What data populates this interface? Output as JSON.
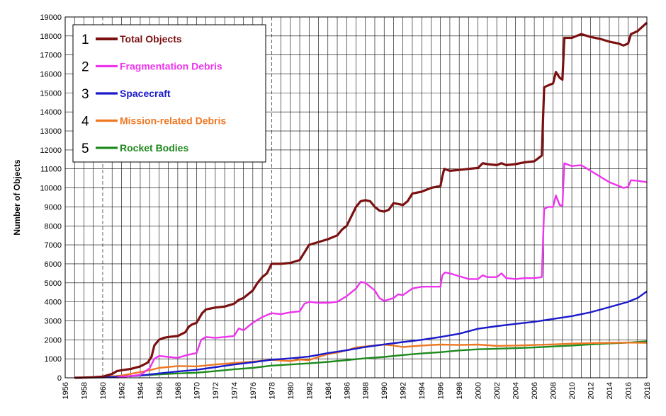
{
  "chart_data": {
    "type": "line",
    "title": "",
    "xlabel": "",
    "ylabel": "Number of Objects",
    "xlim": [
      1956,
      2018
    ],
    "ylim": [
      0,
      19000
    ],
    "x_ticks": [
      "1956",
      "1958",
      "1960",
      "1962",
      "1964",
      "1966",
      "1968",
      "1970",
      "1972",
      "1974",
      "1976",
      "1978",
      "1980",
      "1982",
      "1984",
      "1986",
      "1988",
      "1990",
      "1992",
      "1994",
      "1996",
      "1998",
      "2000",
      "2002",
      "2004",
      "2006",
      "2008",
      "2010",
      "2012",
      "2014",
      "2016",
      "2018"
    ],
    "y_ticks": [
      "0",
      "1000",
      "2000",
      "3000",
      "4000",
      "5000",
      "6000",
      "7000",
      "8000",
      "9000",
      "10000",
      "11000",
      "12000",
      "13000",
      "14000",
      "15000",
      "16000",
      "17000",
      "18000",
      "19000"
    ],
    "grid": true,
    "legend_position": "top-left",
    "series": [
      {
        "number": "1",
        "name": "Total Objects",
        "color": "#7b1010",
        "points": [
          [
            1957,
            0
          ],
          [
            1958,
            10
          ],
          [
            1959,
            30
          ],
          [
            1960,
            60
          ],
          [
            1961,
            200
          ],
          [
            1961.5,
            350
          ],
          [
            1962,
            400
          ],
          [
            1963,
            470
          ],
          [
            1964,
            600
          ],
          [
            1964.8,
            800
          ],
          [
            1965.2,
            1100
          ],
          [
            1965.5,
            1700
          ],
          [
            1966,
            2000
          ],
          [
            1966.5,
            2100
          ],
          [
            1967,
            2150
          ],
          [
            1968,
            2200
          ],
          [
            1968.8,
            2400
          ],
          [
            1969.2,
            2700
          ],
          [
            1969.5,
            2800
          ],
          [
            1970,
            2900
          ],
          [
            1970.6,
            3400
          ],
          [
            1971,
            3600
          ],
          [
            1972,
            3700
          ],
          [
            1973,
            3750
          ],
          [
            1974,
            3900
          ],
          [
            1974.5,
            4100
          ],
          [
            1975,
            4200
          ],
          [
            1976,
            4600
          ],
          [
            1976.5,
            5000
          ],
          [
            1977,
            5300
          ],
          [
            1977.5,
            5500
          ],
          [
            1978,
            6000
          ],
          [
            1979,
            6000
          ],
          [
            1980,
            6050
          ],
          [
            1981,
            6200
          ],
          [
            1981.5,
            6600
          ],
          [
            1982,
            7000
          ],
          [
            1983,
            7150
          ],
          [
            1984,
            7300
          ],
          [
            1985,
            7500
          ],
          [
            1985.5,
            7800
          ],
          [
            1986,
            8000
          ],
          [
            1986.5,
            8500
          ],
          [
            1987,
            9000
          ],
          [
            1987.5,
            9300
          ],
          [
            1988,
            9350
          ],
          [
            1988.5,
            9300
          ],
          [
            1989,
            9000
          ],
          [
            1989.5,
            8800
          ],
          [
            1990,
            8750
          ],
          [
            1990.5,
            8850
          ],
          [
            1991,
            9200
          ],
          [
            1992,
            9100
          ],
          [
            1992.5,
            9300
          ],
          [
            1993,
            9700
          ],
          [
            1994,
            9800
          ],
          [
            1995,
            10000
          ],
          [
            1996,
            10100
          ],
          [
            1996.2,
            10600
          ],
          [
            1996.4,
            11000
          ],
          [
            1997,
            10900
          ],
          [
            1998,
            10950
          ],
          [
            1999,
            11000
          ],
          [
            2000,
            11050
          ],
          [
            2000.5,
            11300
          ],
          [
            2001,
            11250
          ],
          [
            2002,
            11200
          ],
          [
            2002.5,
            11300
          ],
          [
            2003,
            11200
          ],
          [
            2004,
            11250
          ],
          [
            2005,
            11350
          ],
          [
            2006,
            11400
          ],
          [
            2006.8,
            11700
          ],
          [
            2007.05,
            15300
          ],
          [
            2007.5,
            15400
          ],
          [
            2008,
            15500
          ],
          [
            2008.3,
            16100
          ],
          [
            2008.7,
            15800
          ],
          [
            2009,
            15700
          ],
          [
            2009.2,
            17900
          ],
          [
            2010,
            17900
          ],
          [
            2011,
            18100
          ],
          [
            2012,
            17950
          ],
          [
            2013,
            17850
          ],
          [
            2014,
            17700
          ],
          [
            2015,
            17600
          ],
          [
            2015.5,
            17500
          ],
          [
            2016,
            17600
          ],
          [
            2016.3,
            18100
          ],
          [
            2017,
            18250
          ],
          [
            2018,
            18700
          ]
        ]
      },
      {
        "number": "2",
        "name": "Fragmentation Debris",
        "color": "#ee33ee",
        "points": [
          [
            1961.5,
            0
          ],
          [
            1962,
            50
          ],
          [
            1964,
            150
          ],
          [
            1965,
            500
          ],
          [
            1965.5,
            1000
          ],
          [
            1966,
            1150
          ],
          [
            1967,
            1100
          ],
          [
            1968,
            1050
          ],
          [
            1969,
            1200
          ],
          [
            1970,
            1300
          ],
          [
            1970.5,
            2000
          ],
          [
            1971,
            2150
          ],
          [
            1972,
            2100
          ],
          [
            1973,
            2150
          ],
          [
            1974,
            2200
          ],
          [
            1974.5,
            2600
          ],
          [
            1975,
            2500
          ],
          [
            1976,
            2900
          ],
          [
            1977,
            3200
          ],
          [
            1978,
            3400
          ],
          [
            1979,
            3350
          ],
          [
            1980,
            3450
          ],
          [
            1981,
            3500
          ],
          [
            1981.5,
            3900
          ],
          [
            1982,
            4000
          ],
          [
            1983,
            3950
          ],
          [
            1984,
            3950
          ],
          [
            1985,
            4000
          ],
          [
            1986,
            4300
          ],
          [
            1987,
            4700
          ],
          [
            1987.5,
            5050
          ],
          [
            1988,
            5000
          ],
          [
            1989,
            4600
          ],
          [
            1989.5,
            4200
          ],
          [
            1990,
            4050
          ],
          [
            1991,
            4200
          ],
          [
            1991.5,
            4400
          ],
          [
            1992,
            4350
          ],
          [
            1993,
            4700
          ],
          [
            1994,
            4800
          ],
          [
            1995,
            4800
          ],
          [
            1996,
            4800
          ],
          [
            1996.2,
            5400
          ],
          [
            1996.5,
            5550
          ],
          [
            1997,
            5500
          ],
          [
            1998,
            5350
          ],
          [
            1999,
            5200
          ],
          [
            2000,
            5200
          ],
          [
            2000.5,
            5400
          ],
          [
            2001,
            5300
          ],
          [
            2002,
            5300
          ],
          [
            2002.5,
            5500
          ],
          [
            2003,
            5250
          ],
          [
            2004,
            5200
          ],
          [
            2005,
            5250
          ],
          [
            2006,
            5250
          ],
          [
            2006.8,
            5300
          ],
          [
            2007.05,
            8900
          ],
          [
            2007.5,
            9000
          ],
          [
            2008,
            9000
          ],
          [
            2008.3,
            9600
          ],
          [
            2008.7,
            9100
          ],
          [
            2009,
            9050
          ],
          [
            2009.2,
            11300
          ],
          [
            2010,
            11150
          ],
          [
            2011,
            11200
          ],
          [
            2012,
            10900
          ],
          [
            2013,
            10600
          ],
          [
            2014,
            10300
          ],
          [
            2015,
            10100
          ],
          [
            2015.5,
            10000
          ],
          [
            2016,
            10050
          ],
          [
            2016.3,
            10400
          ],
          [
            2017,
            10380
          ],
          [
            2018,
            10300
          ]
        ]
      },
      {
        "number": "3",
        "name": "Spacecraft",
        "color": "#1a1acc",
        "points": [
          [
            1957,
            0
          ],
          [
            1960,
            20
          ],
          [
            1962,
            60
          ],
          [
            1964,
            120
          ],
          [
            1966,
            230
          ],
          [
            1968,
            330
          ],
          [
            1970,
            420
          ],
          [
            1972,
            560
          ],
          [
            1974,
            700
          ],
          [
            1976,
            820
          ],
          [
            1978,
            950
          ],
          [
            1980,
            1020
          ],
          [
            1982,
            1120
          ],
          [
            1984,
            1300
          ],
          [
            1986,
            1450
          ],
          [
            1988,
            1620
          ],
          [
            1990,
            1760
          ],
          [
            1992,
            1880
          ],
          [
            1994,
            2000
          ],
          [
            1996,
            2150
          ],
          [
            1998,
            2320
          ],
          [
            2000,
            2580
          ],
          [
            2002,
            2720
          ],
          [
            2004,
            2840
          ],
          [
            2006,
            2950
          ],
          [
            2008,
            3100
          ],
          [
            2010,
            3250
          ],
          [
            2012,
            3450
          ],
          [
            2014,
            3720
          ],
          [
            2016,
            4000
          ],
          [
            2017,
            4200
          ],
          [
            2018,
            4550
          ]
        ]
      },
      {
        "number": "4",
        "name": "Mission-related Debris",
        "color": "#ee7722",
        "points": [
          [
            1957,
            0
          ],
          [
            1960,
            30
          ],
          [
            1962,
            120
          ],
          [
            1964,
            300
          ],
          [
            1965,
            400
          ],
          [
            1966,
            520
          ],
          [
            1968,
            620
          ],
          [
            1970,
            600
          ],
          [
            1972,
            700
          ],
          [
            1974,
            780
          ],
          [
            1976,
            850
          ],
          [
            1978,
            950
          ],
          [
            1980,
            880
          ],
          [
            1981,
            960
          ],
          [
            1982,
            930
          ],
          [
            1983,
            1100
          ],
          [
            1984,
            1250
          ],
          [
            1985,
            1330
          ],
          [
            1986,
            1450
          ],
          [
            1987,
            1600
          ],
          [
            1988,
            1650
          ],
          [
            1990,
            1750
          ],
          [
            1991,
            1700
          ],
          [
            1992,
            1620
          ],
          [
            1994,
            1700
          ],
          [
            1996,
            1750
          ],
          [
            1998,
            1730
          ],
          [
            2000,
            1750
          ],
          [
            2002,
            1680
          ],
          [
            2004,
            1700
          ],
          [
            2006,
            1730
          ],
          [
            2008,
            1760
          ],
          [
            2010,
            1800
          ],
          [
            2012,
            1830
          ],
          [
            2014,
            1840
          ],
          [
            2016,
            1850
          ],
          [
            2018,
            1840
          ]
        ]
      },
      {
        "number": "5",
        "name": "Rocket Bodies",
        "color": "#1e8a1e",
        "points": [
          [
            1957,
            0
          ],
          [
            1960,
            30
          ],
          [
            1962,
            70
          ],
          [
            1964,
            120
          ],
          [
            1966,
            180
          ],
          [
            1968,
            230
          ],
          [
            1970,
            270
          ],
          [
            1972,
            350
          ],
          [
            1974,
            450
          ],
          [
            1976,
            520
          ],
          [
            1978,
            640
          ],
          [
            1980,
            700
          ],
          [
            1982,
            760
          ],
          [
            1984,
            840
          ],
          [
            1986,
            930
          ],
          [
            1988,
            1030
          ],
          [
            1990,
            1100
          ],
          [
            1992,
            1200
          ],
          [
            1994,
            1280
          ],
          [
            1996,
            1350
          ],
          [
            1998,
            1440
          ],
          [
            2000,
            1500
          ],
          [
            2002,
            1530
          ],
          [
            2004,
            1560
          ],
          [
            2006,
            1600
          ],
          [
            2008,
            1650
          ],
          [
            2010,
            1700
          ],
          [
            2012,
            1760
          ],
          [
            2014,
            1810
          ],
          [
            2016,
            1850
          ],
          [
            2018,
            1920
          ]
        ]
      }
    ]
  }
}
